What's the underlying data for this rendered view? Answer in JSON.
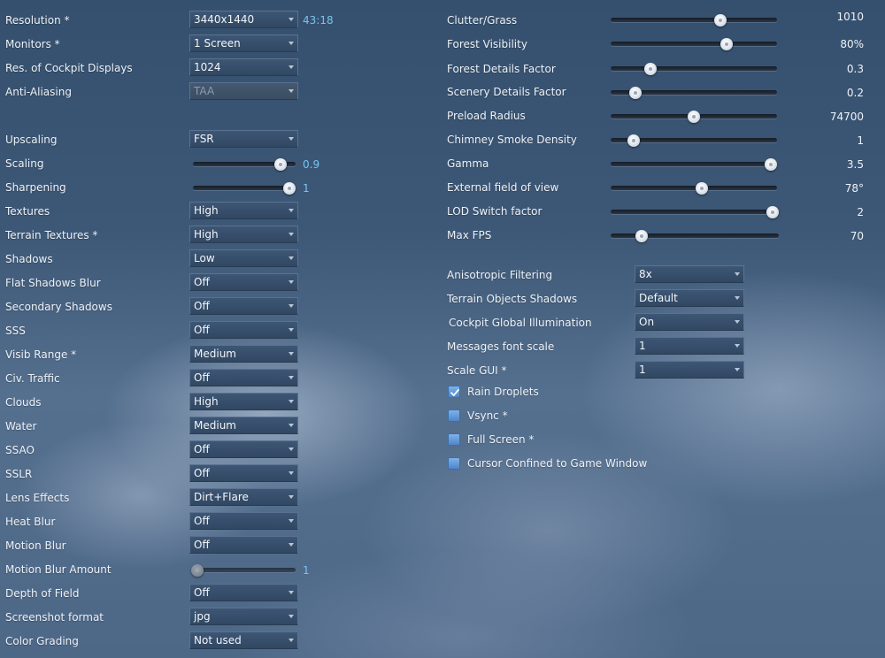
{
  "left": {
    "resolution": {
      "label": "Resolution *",
      "value": "3440x1440",
      "aspect": "43:18"
    },
    "monitors": {
      "label": "Monitors *",
      "value": "1 Screen"
    },
    "cockpit_res": {
      "label": "Res. of Cockpit Displays",
      "value": "1024"
    },
    "antialiasing": {
      "label": "Anti-Aliasing",
      "value": "TAA"
    },
    "upscaling": {
      "label": "Upscaling",
      "value": "FSR"
    },
    "scaling": {
      "label": "Scaling",
      "value": "0.9",
      "fraction": 0.9
    },
    "sharpening": {
      "label": "Sharpening",
      "value": "1",
      "fraction": 1.0
    },
    "textures": {
      "label": "Textures",
      "value": "High"
    },
    "terrain_textures": {
      "label": "Terrain Textures *",
      "value": "High"
    },
    "shadows": {
      "label": "Shadows",
      "value": "Low"
    },
    "flat_shadows_blur": {
      "label": "Flat Shadows Blur",
      "value": "Off"
    },
    "secondary_shadows": {
      "label": "Secondary Shadows",
      "value": "Off"
    },
    "sss": {
      "label": "SSS",
      "value": "Off"
    },
    "visib_range": {
      "label": "Visib Range *",
      "value": "Medium"
    },
    "civ_traffic": {
      "label": "Civ. Traffic",
      "value": "Off"
    },
    "clouds": {
      "label": "Clouds",
      "value": "High"
    },
    "water": {
      "label": "Water",
      "value": "Medium"
    },
    "ssao": {
      "label": "SSAO",
      "value": "Off"
    },
    "sslr": {
      "label": "SSLR",
      "value": "Off"
    },
    "lens_effects": {
      "label": "Lens Effects",
      "value": "Dirt+Flare"
    },
    "heat_blur": {
      "label": "Heat Blur",
      "value": "Off"
    },
    "motion_blur": {
      "label": "Motion Blur",
      "value": "Off"
    },
    "motion_blur_amount": {
      "label": "Motion Blur Amount",
      "value": "1",
      "fraction": 0.0
    },
    "depth_of_field": {
      "label": "Depth of Field",
      "value": "Off"
    },
    "screenshot_format": {
      "label": "Screenshot format",
      "value": "jpg"
    },
    "color_grading": {
      "label": "Color Grading",
      "value": "Not used"
    }
  },
  "right": {
    "clutter_grass": {
      "label": "Clutter/Grass",
      "value": "1010",
      "fraction": 0.67
    },
    "forest_visibility": {
      "label": "Forest Visibility",
      "value": "80%",
      "fraction": 0.71
    },
    "forest_details": {
      "label": "Forest Details Factor",
      "value": "0.3",
      "fraction": 0.22
    },
    "scenery_details": {
      "label": "Scenery Details Factor",
      "value": "0.2",
      "fraction": 0.12
    },
    "preload_radius": {
      "label": "Preload Radius",
      "value": "74700",
      "fraction": 0.5
    },
    "chimney_smoke": {
      "label": "Chimney Smoke Density",
      "value": "1",
      "fraction": 0.11
    },
    "gamma": {
      "label": "Gamma",
      "value": "3.5",
      "fraction": 1.0
    },
    "external_fov": {
      "label": "External field of view",
      "value": "78°",
      "fraction": 0.55
    },
    "lod_switch": {
      "label": "LOD Switch factor",
      "value": "2",
      "fraction": 1.0
    },
    "max_fps": {
      "label": "Max FPS",
      "value": "70",
      "fraction": 0.16
    },
    "anisotropic": {
      "label": "Anisotropic Filtering",
      "value": "8x"
    },
    "terrain_objects_shadows": {
      "label": "Terrain Objects Shadows",
      "value": "Default"
    },
    "cockpit_gi": {
      "label": "Cockpit Global Illumination",
      "value": "On"
    },
    "messages_font_scale": {
      "label": "Messages font scale",
      "value": "1"
    },
    "scale_gui": {
      "label": "Scale GUI *",
      "value": "1"
    },
    "rain_droplets": {
      "label": "Rain Droplets",
      "checked": true
    },
    "vsync": {
      "label": "Vsync *",
      "checked": false
    },
    "full_screen": {
      "label": "Full Screen *",
      "checked": false
    },
    "cursor_confined": {
      "label": "Cursor Confined to Game Window",
      "checked": false
    }
  },
  "icons": {
    "dropdown_arrow": "chevron-down-icon",
    "checkmark": "checkmark-icon"
  }
}
